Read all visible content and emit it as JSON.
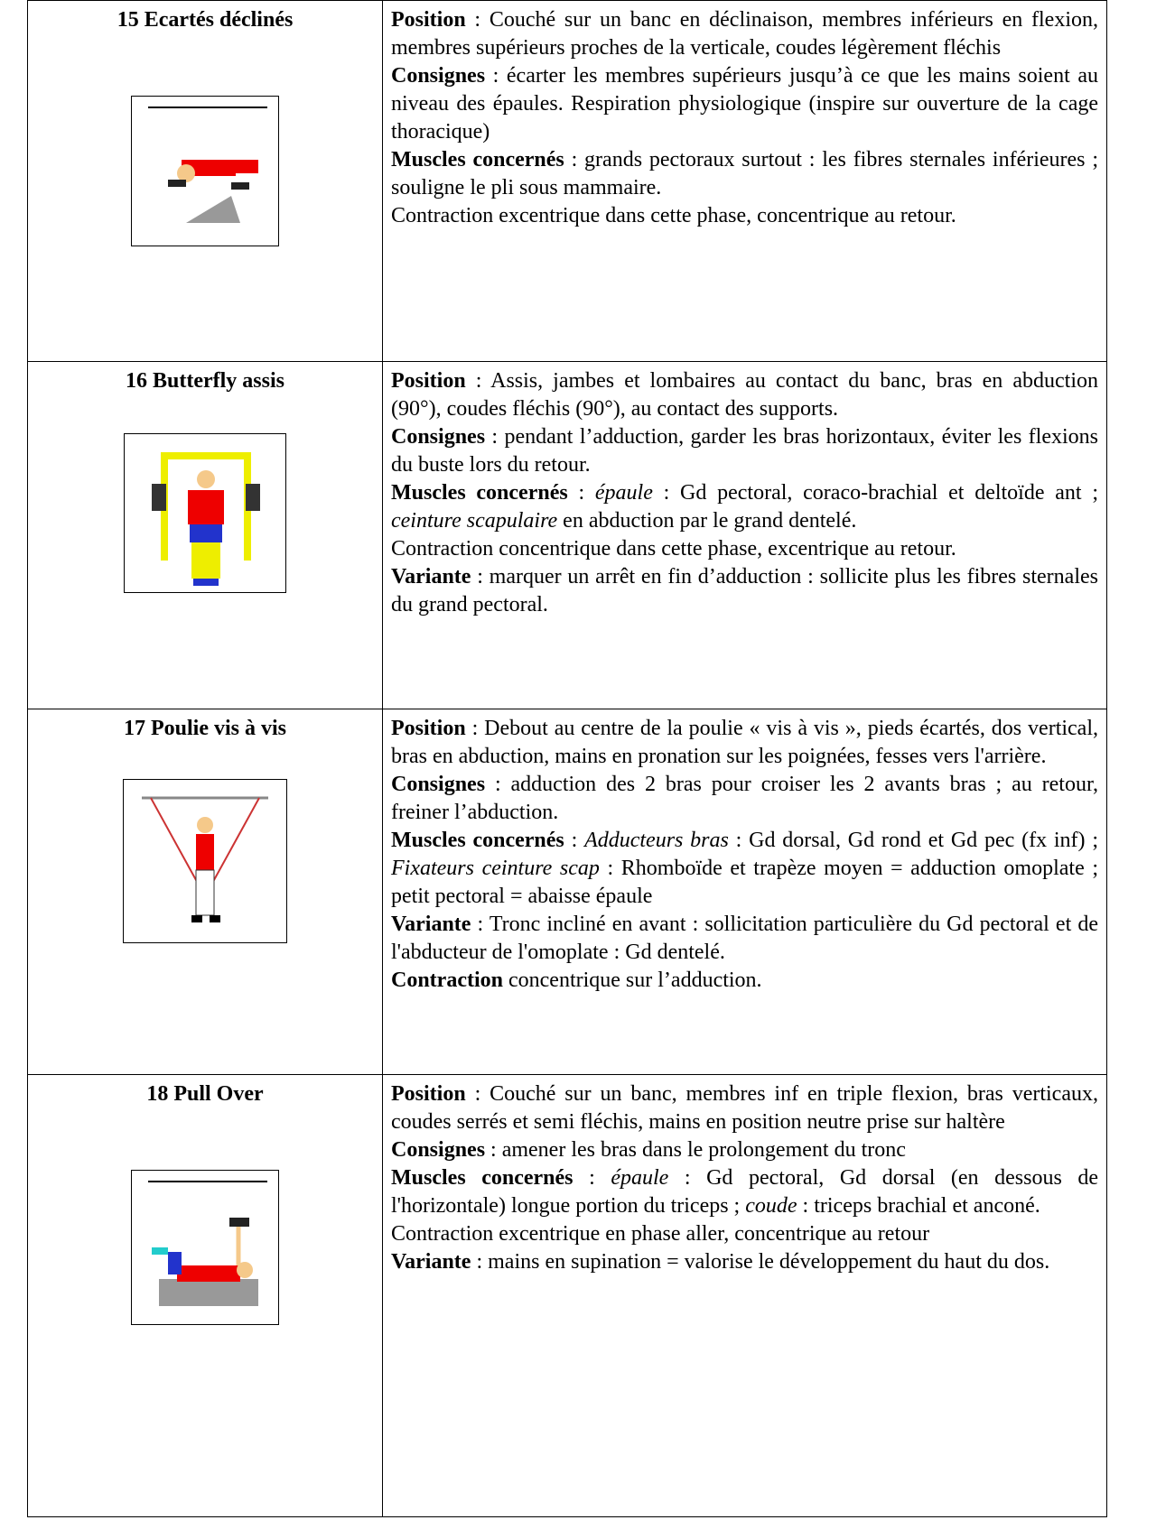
{
  "table": {
    "rows": [
      {
        "title": "15 Ecartés déclinés",
        "paragraphs": [
          [
            {
              "text": "Position",
              "style": "bold"
            },
            {
              "text": " : Couché sur un banc en déclinaison, membres inférieurs en flexion, membres supérieurs proches de la verticale, coudes légèrement fléchis"
            }
          ],
          [
            {
              "text": "Consignes",
              "style": "bold"
            },
            {
              "text": " : écarter les membres supérieurs jusqu’à ce que les mains soient au niveau des épaules. Respiration physiologique (inspire sur ouverture de la cage thoracique)"
            }
          ],
          [
            {
              "text": "Muscles concernés",
              "style": "bold"
            },
            {
              "text": " : grands pectoraux surtout : les fibres sternales inférieures ; souligne le pli sous mammaire."
            }
          ],
          [
            {
              "text": "Contraction excentrique dans cette phase, concentrique au retour."
            }
          ]
        ]
      },
      {
        "title": "16 Butterfly assis",
        "paragraphs": [
          [
            {
              "text": "Position",
              "style": "bold"
            },
            {
              "text": " : Assis, jambes et lombaires au contact du banc, bras en abduction (90°), coudes fléchis (90°), au contact des supports."
            }
          ],
          [
            {
              "text": "Consignes",
              "style": "bold"
            },
            {
              "text": " : pendant l’adduction, garder les bras horizontaux, éviter les flexions du buste lors du retour."
            }
          ],
          [
            {
              "text": "Muscles concernés",
              "style": "bold"
            },
            {
              "text": " : "
            },
            {
              "text": "épaule",
              "style": "italic"
            },
            {
              "text": " : Gd pectoral, coraco-brachial et deltoïde ant ; "
            },
            {
              "text": "ceinture scapulaire",
              "style": "italic"
            },
            {
              "text": " en abduction par le grand dentelé."
            }
          ],
          [
            {
              "text": "Contraction concentrique dans cette phase, excentrique au retour."
            }
          ],
          [
            {
              "text": "Variante",
              "style": "bold"
            },
            {
              "text": " : marquer un arrêt en fin d’adduction : sollicite plus les fibres sternales du grand pectoral."
            }
          ]
        ]
      },
      {
        "title": "17 Poulie vis à vis",
        "paragraphs": [
          [
            {
              "text": "Position",
              "style": "bold"
            },
            {
              "text": " : Debout au centre de la poulie « vis à vis », pieds écartés, dos vertical, bras en abduction, mains en pronation sur les poignées, fesses vers l'arrière."
            }
          ],
          [
            {
              "text": "Consignes",
              "style": "bold"
            },
            {
              "text": " : adduction des 2 bras pour croiser les 2 avants bras ; au retour, freiner l’abduction."
            }
          ],
          [
            {
              "text": "Muscles concernés",
              "style": "bold"
            },
            {
              "text": " : "
            },
            {
              "text": "Adducteurs bras",
              "style": "italic"
            },
            {
              "text": " : Gd dorsal, Gd rond et Gd pec (fx inf) ; "
            },
            {
              "text": "Fixateurs ceinture scap",
              "style": "italic"
            },
            {
              "text": " : Rhomboïde et trapèze moyen = adduction omoplate ; petit pectoral = abaisse épaule"
            }
          ],
          [
            {
              "text": "Variante",
              "style": "bold"
            },
            {
              "text": " : Tronc incliné en avant : sollicitation particulière du Gd pectoral et de l'abducteur de l'omoplate : Gd dentelé."
            }
          ],
          [
            {
              "text": "Contraction",
              "style": "bold"
            },
            {
              "text": " concentrique sur l’adduction."
            }
          ]
        ]
      },
      {
        "title": "18 Pull Over",
        "paragraphs": [
          [
            {
              "text": "Position",
              "style": "bold"
            },
            {
              "text": " : Couché sur un banc, membres inf en triple flexion, bras verticaux, coudes serrés et semi fléchis, mains en position neutre prise sur haltère"
            }
          ],
          [
            {
              "text": "Consignes",
              "style": "bold"
            },
            {
              "text": " : amener les bras dans le prolongement du tronc"
            }
          ],
          [
            {
              "text": "Muscles concernés",
              "style": "bold"
            },
            {
              "text": " : "
            },
            {
              "text": "épaule",
              "style": "italic"
            },
            {
              "text": " : Gd pectoral, Gd dorsal (en dessous de l'horizontale) longue portion du triceps ; "
            },
            {
              "text": "coude",
              "style": "italic"
            },
            {
              "text": " : triceps brachial et anconé."
            }
          ],
          [
            {
              "text": "Contraction excentrique en phase aller, concentrique au retour"
            }
          ],
          [
            {
              "text": "Variante",
              "style": "bold"
            },
            {
              "text": " : mains en supination = valorise le développement du haut du dos."
            }
          ]
        ]
      }
    ]
  }
}
